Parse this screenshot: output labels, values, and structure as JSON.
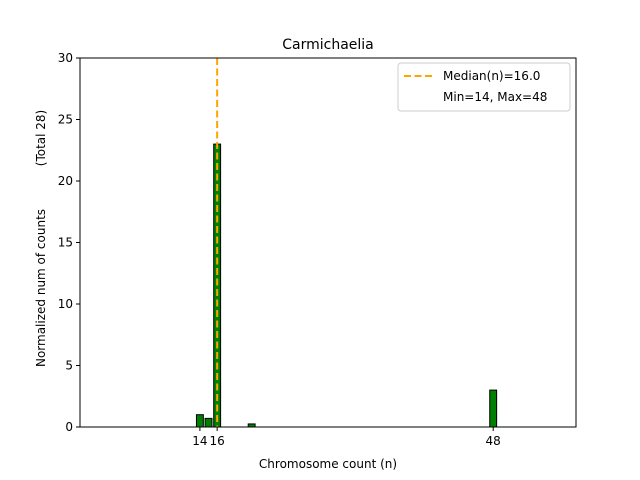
{
  "chart_data": {
    "type": "bar",
    "title": "Carmichaelia",
    "xlabel": "Chromosome count (n)",
    "ylabel": "Normalized num of counts",
    "ylabel_extra": "(Total 28)",
    "x": [
      14,
      15,
      16,
      20,
      48
    ],
    "values": [
      1.0,
      0.7,
      23.0,
      0.25,
      3.0
    ],
    "xlim": [
      0.1,
      57.6
    ],
    "ylim": [
      0,
      30
    ],
    "xticks": [
      14,
      16,
      48
    ],
    "xtick_labels": [
      "14",
      "16",
      "48"
    ],
    "yticks": [
      0,
      5,
      10,
      15,
      20,
      25,
      30
    ],
    "bar_color": "#008000",
    "bar_edge_color": "#000000",
    "median": 16.0,
    "median_color": "#FFA500",
    "legend": {
      "placement": "top-right",
      "entries": [
        "Median(n)=16.0",
        "Min=14, Max=48"
      ]
    },
    "grid": false
  }
}
